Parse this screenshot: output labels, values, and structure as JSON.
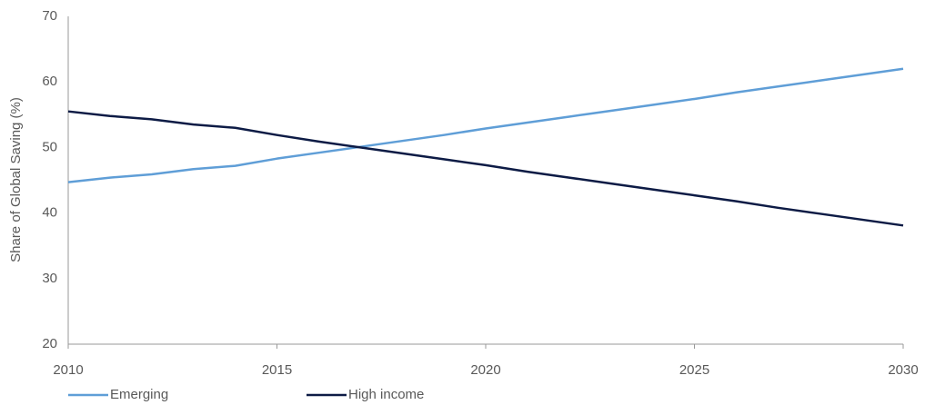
{
  "chart_data": {
    "type": "line",
    "ylabel": "Share of Global Saving (%)",
    "x": [
      2010,
      2011,
      2012,
      2013,
      2014,
      2015,
      2016,
      2017,
      2018,
      2019,
      2020,
      2021,
      2022,
      2023,
      2024,
      2025,
      2026,
      2027,
      2028,
      2029,
      2030
    ],
    "series": [
      {
        "name": "Emerging",
        "color": "#5f9ed7",
        "values": [
          44.7,
          45.4,
          45.9,
          46.7,
          47.2,
          48.3,
          49.2,
          50.1,
          51.0,
          51.9,
          52.9,
          53.8,
          54.7,
          55.6,
          56.5,
          57.4,
          58.4,
          59.3,
          60.2,
          61.1,
          62.0
        ]
      },
      {
        "name": "High income",
        "color": "#0d1b45",
        "values": [
          55.5,
          54.8,
          54.3,
          53.5,
          53.0,
          51.9,
          50.9,
          50.0,
          49.1,
          48.2,
          47.3,
          46.3,
          45.4,
          44.5,
          43.6,
          42.7,
          41.8,
          40.8,
          39.9,
          39.0,
          38.1
        ]
      }
    ],
    "xlim": [
      2010,
      2030
    ],
    "xticks": [
      2010,
      2015,
      2020,
      2025,
      2030
    ],
    "ylim": [
      20,
      70
    ],
    "yticks": [
      20,
      30,
      40,
      50,
      60,
      70
    ],
    "grid": false,
    "legend": "bottom-left"
  }
}
